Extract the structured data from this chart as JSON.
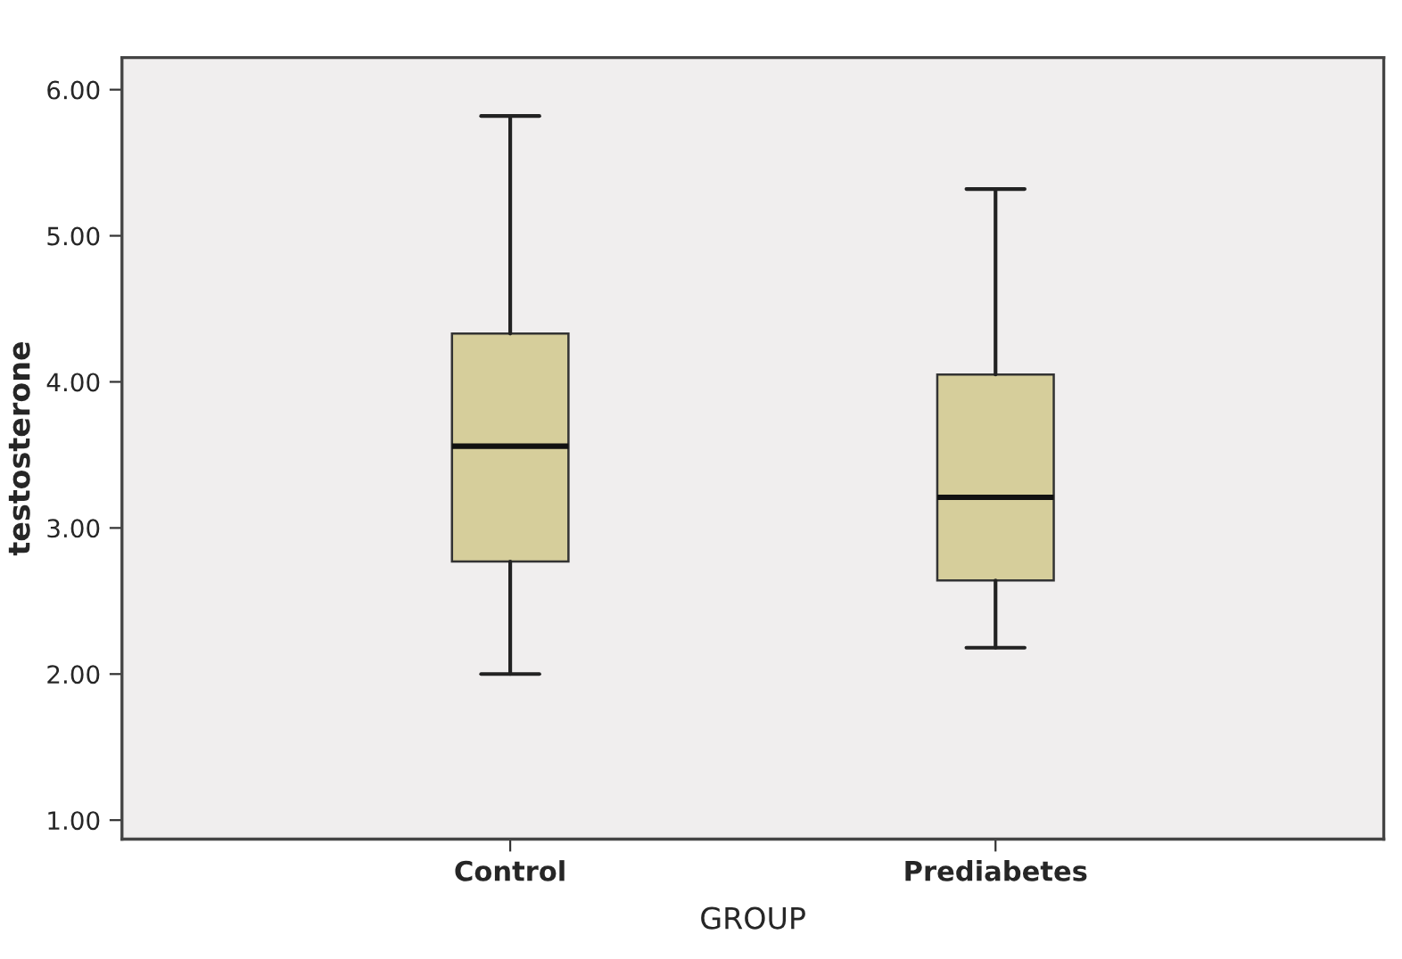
{
  "chart_data": {
    "type": "box",
    "xlabel": "GROUP",
    "ylabel": "testosterone",
    "categories": [
      "Control",
      "Prediabetes"
    ],
    "boxes": [
      {
        "low": 2.0,
        "q1": 2.77,
        "median": 3.56,
        "q3": 4.33,
        "high": 5.82
      },
      {
        "low": 2.18,
        "q1": 2.64,
        "median": 3.21,
        "q3": 4.05,
        "high": 5.32
      }
    ],
    "color": "#d6ce9b",
    "ylim": [
      0.87,
      6.22
    ],
    "yticks": [
      {
        "value": 1,
        "label": "1.00"
      },
      {
        "value": 2,
        "label": "2.00"
      },
      {
        "value": 3,
        "label": "3.00"
      },
      {
        "value": 4,
        "label": "4.00"
      },
      {
        "value": 5,
        "label": "5.00"
      },
      {
        "value": 6,
        "label": "6.00"
      }
    ],
    "grid": false
  }
}
